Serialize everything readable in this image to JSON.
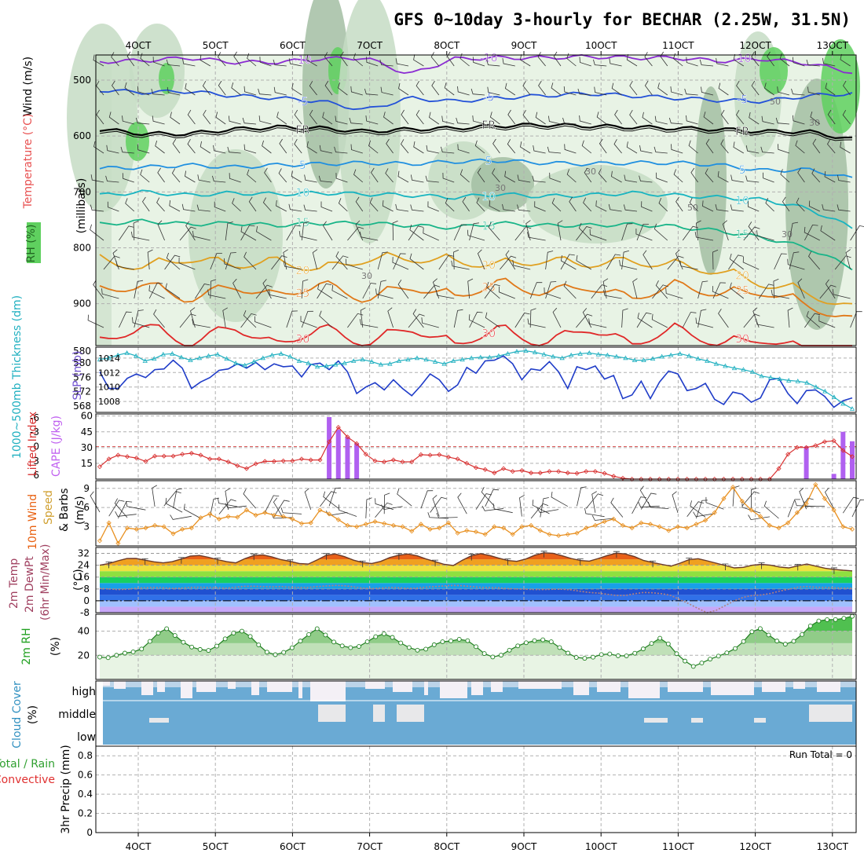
{
  "title": "GFS 0~10day 3-hourly for BECHAR (2.25W, 31.5N)",
  "colors": {
    "rh_light": "#e8f3e5",
    "rh_mid": "#c6dcc4",
    "rh_dark": "#a3bea3",
    "rh_green": "#5fd05f",
    "temp_m10": "#8a2bd2",
    "temp_m5": "#2250d8",
    "temp_fr": "#000000",
    "temp_5": "#1f8fe0",
    "temp_10": "#18b4c0",
    "temp_15": "#18b488",
    "temp_20": "#e0a020",
    "temp_25": "#e07818",
    "temp_30": "#e02828",
    "slp": "#1f3cc8",
    "thick": "#20b0c0",
    "li": "#d83030",
    "cape": "#b060f0",
    "wind10": "#e89020",
    "cloud": "#6aaad4",
    "grid": "#b0b0b0"
  },
  "chart_data": [
    {
      "type": "heatmap",
      "name": "upper-air",
      "ylabel": "(millibars)",
      "legend_labels": [
        "RH (%)",
        "Temperature (°C)",
        "Wind (m/s)"
      ],
      "yticks": [
        500,
        600,
        700,
        800,
        900
      ],
      "ylim": [
        975,
        455
      ],
      "xtick_labels": [
        "4OCT",
        "5OCT",
        "6OCT",
        "7OCT",
        "8OCT",
        "9OCT",
        "10OCT",
        "11OCT",
        "12OCT",
        "13OCT"
      ],
      "rh_labels": [
        "30",
        "30",
        "50",
        "30",
        "50",
        "30",
        "30"
      ],
      "isotherms": [
        {
          "label": "-10",
          "color_key": "temp_m10",
          "values": [
            467,
            465,
            460,
            468,
            468,
            462,
            460,
            490,
            462,
            460,
            460,
            458,
            460,
            460,
            466,
            462,
            470,
            486
          ]
        },
        {
          "label": "-5",
          "color_key": "temp_m5",
          "values": [
            518,
            522,
            520,
            528,
            532,
            538,
            554,
            532,
            538,
            532,
            528,
            524,
            528,
            532,
            536,
            538,
            528,
            524
          ]
        },
        {
          "label": "FR",
          "color_key": "temp_fr",
          "values": [
            588,
            596,
            596,
            588,
            584,
            586,
            592,
            588,
            586,
            582,
            580,
            582,
            584,
            586,
            588,
            592,
            592,
            606
          ]
        },
        {
          "label": "5",
          "color_key": "temp_5",
          "values": [
            658,
            656,
            652,
            656,
            652,
            650,
            648,
            650,
            646,
            644,
            648,
            650,
            648,
            648,
            652,
            662,
            660,
            676
          ]
        },
        {
          "label": "10",
          "color_key": "temp_10",
          "values": [
            706,
            700,
            706,
            702,
            704,
            702,
            704,
            706,
            710,
            704,
            708,
            706,
            702,
            706,
            710,
            714,
            730,
            764
          ]
        },
        {
          "label": "15",
          "color_key": "temp_15",
          "values": [
            758,
            752,
            758,
            756,
            760,
            756,
            756,
            760,
            764,
            756,
            760,
            760,
            758,
            762,
            770,
            782,
            800,
            836
          ]
        },
        {
          "label": "20",
          "color_key": "temp_20",
          "values": [
            812,
            822,
            806,
            818,
            812,
            826,
            808,
            806,
            812,
            818,
            810,
            816,
            812,
            818,
            830,
            852,
            868,
            898
          ]
        },
        {
          "label": "25",
          "color_key": "temp_25",
          "values": [
            868,
            852,
            880,
            856,
            874,
            852,
            880,
            856,
            876,
            850,
            868,
            856,
            878,
            854,
            870,
            866,
            890,
            920
          ]
        },
        {
          "label": "30",
          "color_key": "temp_30",
          "values": [
            960,
            925,
            960,
            928,
            962,
            930,
            960,
            930,
            962,
            932,
            960,
            930,
            960,
            932,
            960,
            950,
            975,
            975
          ]
        }
      ]
    },
    {
      "type": "line",
      "name": "slp-thickness",
      "ylabels": [
        "1000~500mb Thickness (dm)",
        "SLP (mb)"
      ],
      "yticks_left": [
        568,
        572,
        576,
        580
      ],
      "yticks_right": [
        1008,
        1010,
        1012,
        1014
      ],
      "ylim_right": [
        1006.5,
        1015.5
      ],
      "series": [
        {
          "key": "slp",
          "values": [
            1012.1,
            1009.8,
            1009.8,
            1011.2,
            1011.8,
            1011.3,
            1012.4,
            1012.5,
            1013.7,
            1012.6,
            1009.8,
            1010.7,
            1011.3,
            1012.3,
            1012.5,
            1013.2,
            1012.6,
            1013.4,
            1012.4,
            1013.2,
            1012.8,
            1012.9,
            1011.4,
            1013.1,
            1013.3,
            1012.4,
            1013.6,
            1012.1,
            1009.1,
            1010.0,
            1010.6,
            1009.6,
            1011.0,
            1009.8,
            1008.8,
            1010.2,
            1011.8,
            1011.0,
            1009.4,
            1010.3,
            1012.7,
            1011.9,
            1013.6,
            1013.7,
            1014.3,
            1013.2,
            1011.0,
            1012.5,
            1012.3,
            1013.5,
            1012.1,
            1009.8,
            1012.8,
            1012.4,
            1012.9,
            1011.1,
            1011.6,
            1008.4,
            1008.9,
            1010.8,
            1008.4,
            1010.7,
            1012.2,
            1011.8,
            1009.5,
            1009.8,
            1010.5,
            1008.3,
            1007.6,
            1009.3,
            1009.0,
            1007.9,
            1008.5,
            1011.0,
            1011.2,
            1009.1,
            1007.7,
            1009.5,
            1009.6,
            1008.7,
            1007.2,
            1008.1,
            1008.5
          ]
        },
        {
          "key": "thick",
          "values": [
            1013.8,
            1014.0,
            1014.4,
            1014.7,
            1014.3,
            1013.6,
            1013.9,
            1014.5,
            1014.6,
            1014.1,
            1013.7,
            1014.0,
            1014.3,
            1014.5,
            1013.9,
            1013.3,
            1013.0,
            1013.5,
            1014.0,
            1014.4,
            1014.6,
            1014.2,
            1013.6,
            1013.3,
            1012.8,
            1012.9,
            1013.1,
            1013.3,
            1013.6,
            1013.8,
            1013.5,
            1013.1,
            1013.2,
            1013.6,
            1013.8,
            1014.0,
            1013.8,
            1013.5,
            1013.2,
            1013.6,
            1013.8,
            1014.0,
            1014.1,
            1014.1,
            1014.3,
            1014.6,
            1014.9,
            1015.0,
            1014.8,
            1014.5,
            1014.2,
            1014.0,
            1014.4,
            1014.6,
            1014.7,
            1014.5,
            1014.4,
            1014.2,
            1014.0,
            1013.7,
            1013.7,
            1013.9,
            1014.2,
            1014.4,
            1014.6,
            1014.3,
            1013.9,
            1013.6,
            1013.2,
            1012.9,
            1012.6,
            1012.4,
            1012.1,
            1011.5,
            1011.3,
            1011.1,
            1010.9,
            1010.8,
            1010.6,
            1010.0,
            1009.4,
            1008.6,
            1007.7,
            1007.0
          ]
        }
      ]
    },
    {
      "type": "line",
      "name": "lifted-index-cape",
      "ylabels": [
        "Lifted Index",
        "CAPE (J/kg)"
      ],
      "yticks_left": [
        "-6",
        "-3",
        "0",
        "3",
        "6"
      ],
      "yticks_right": [
        15,
        30,
        45,
        60
      ],
      "li": [
        4.2,
        2.6,
        1.8,
        2.1,
        2.4,
        3.1,
        2.0,
        2.0,
        2.0,
        1.6,
        1.4,
        1.8,
        2.6,
        2.6,
        3.2,
        4.0,
        4.6,
        3.6,
        3.1,
        3.1,
        3.0,
        3.0,
        2.6,
        2.8,
        2.8,
        -1.0,
        -4.0,
        -2.0,
        -0.6,
        1.6,
        3.0,
        3.2,
        2.8,
        3.2,
        3.2,
        1.7,
        1.8,
        1.7,
        2.2,
        2.6,
        3.5,
        4.4,
        4.8,
        5.5,
        4.6,
        5.2,
        5.0,
        5.5,
        5.5,
        5.2,
        5.2,
        5.5,
        5.6,
        5.2,
        5.2,
        5.6,
        6.2,
        6.6,
        6.8,
        7.2,
        7.6,
        7.6,
        7.8,
        7.6,
        7.4,
        7.6,
        7.4,
        7.4,
        7.6,
        7.4,
        7.6,
        7.6,
        7.8,
        7.8,
        4.6,
        1.6,
        0.2,
        0.2,
        -0.2,
        -1.0,
        -1.2,
        0.8,
        2.1
      ],
      "cape": [
        {
          "i": 25,
          "v": 59
        },
        {
          "i": 26,
          "v": 47
        },
        {
          "i": 27,
          "v": 40
        },
        {
          "i": 28,
          "v": 34
        },
        {
          "i": 77,
          "v": 31
        },
        {
          "i": 80,
          "v": 5
        },
        {
          "i": 81,
          "v": 45
        },
        {
          "i": 82,
          "v": 36
        }
      ]
    },
    {
      "type": "line",
      "name": "10m-wind",
      "ylabel": "10m Wind Speed & Barbs (m/s)",
      "yticks": [
        3,
        6,
        9
      ],
      "values": [
        0.8,
        3.6,
        0.4,
        2.8,
        2.6,
        2.8,
        3.2,
        3.0,
        1.9,
        2.6,
        2.8,
        4.4,
        5.0,
        4.2,
        4.6,
        4.5,
        5.6,
        4.8,
        5.2,
        4.8,
        4.6,
        4.2,
        3.5,
        3.6,
        5.6,
        5.0,
        4.1,
        3.2,
        3.0,
        3.4,
        3.8,
        3.5,
        3.2,
        3.0,
        2.3,
        3.4,
        2.6,
        2.8,
        3.6,
        2.0,
        2.4,
        2.2,
        1.8,
        3.0,
        2.8,
        1.8,
        3.0,
        3.2,
        2.4,
        1.8,
        1.6,
        1.8,
        2.0,
        2.8,
        3.2,
        3.8,
        4.2,
        3.2,
        2.8,
        3.6,
        3.4,
        3.0,
        2.4,
        3.0,
        2.8,
        3.4,
        4.0,
        5.2,
        7.4,
        9.2,
        7.0,
        5.6,
        4.6,
        3.2,
        2.8,
        3.6,
        5.2,
        6.6,
        9.6,
        7.4,
        5.6,
        3.0,
        2.6
      ]
    },
    {
      "type": "area",
      "name": "2m-temp",
      "ylabel": "2m Temp 2m DewPt (6hr Min/Max) (°C)",
      "yticks": [
        "-8",
        "0",
        "8",
        "16",
        "24",
        "32"
      ],
      "ylim": [
        -8,
        36
      ],
      "temp": [
        24.0,
        25.2,
        27.0,
        28.5,
        28.6,
        27.4,
        26.3,
        25.6,
        26.4,
        28.2,
        30.2,
        30.6,
        29.4,
        27.8,
        26.4,
        25.6,
        28.4,
        30.6,
        31.0,
        29.6,
        27.8,
        26.6,
        25.2,
        24.8,
        27.6,
        30.8,
        31.6,
        29.8,
        27.4,
        25.8,
        25.2,
        26.6,
        29.2,
        30.8,
        31.6,
        30.4,
        28.2,
        26.4,
        24.6,
        23.8,
        27.4,
        30.4,
        31.8,
        30.6,
        28.8,
        27.2,
        26.6,
        28.2,
        30.8,
        32.4,
        32.0,
        30.4,
        28.6,
        27.2,
        26.8,
        28.6,
        30.6,
        32.2,
        31.6,
        29.8,
        27.2,
        25.8,
        24.6,
        23.4,
        25.4,
        27.8,
        28.4,
        27.0,
        25.4,
        23.8,
        22.2,
        22.6,
        24.0,
        24.6,
        24.0,
        22.8,
        22.2,
        23.6,
        24.8,
        23.4,
        22.0,
        21.2,
        20.6,
        20.2
      ],
      "dewpt": [
        8.4,
        8.0,
        7.6,
        7.8,
        8.6,
        8.8,
        9.0,
        8.8,
        8.4,
        8.6,
        9.0,
        9.2,
        9.0,
        8.8,
        8.6,
        9.2,
        9.8,
        9.8,
        9.6,
        9.4,
        9.6,
        9.2,
        9.0,
        9.0,
        9.6,
        10.0,
        10.4,
        10.2,
        9.4,
        8.6,
        8.2,
        8.6,
        9.0,
        8.8,
        8.4,
        8.6,
        9.2,
        9.6,
        10.0,
        10.4,
        10.2,
        9.6,
        9.0,
        9.0,
        8.8,
        8.2,
        8.0,
        7.8,
        7.6,
        7.6,
        7.8,
        7.8,
        7.4,
        6.4,
        5.6,
        5.2,
        4.4,
        3.6,
        3.6,
        4.8,
        5.6,
        5.4,
        4.8,
        3.6,
        0.8,
        -2.0,
        -5.2,
        -8.0,
        -6.4,
        -3.2,
        0.0,
        2.4,
        3.6,
        4.0,
        5.0,
        6.6,
        7.8,
        9.2,
        9.6,
        9.2,
        9.0,
        8.8,
        8.6,
        8.6
      ]
    },
    {
      "type": "area",
      "name": "2m-rh",
      "ylabel": "2m RH (%)",
      "yticks": [
        20,
        40
      ],
      "ylim": [
        0,
        54
      ],
      "values": [
        18.5,
        18.0,
        20.0,
        21.8,
        22.8,
        25.2,
        31.5,
        38.4,
        42.0,
        36.4,
        30.8,
        26.8,
        24.8,
        24.0,
        27.6,
        33.6,
        38.4,
        40.0,
        35.6,
        28.6,
        22.6,
        20.5,
        22.4,
        26.2,
        31.8,
        37.2,
        42.0,
        36.8,
        31.0,
        27.8,
        26.3,
        27.3,
        31.2,
        35.4,
        37.8,
        34.8,
        30.2,
        26.4,
        24.2,
        25.1,
        28.7,
        31.2,
        31.9,
        33.2,
        32.1,
        27.1,
        21.4,
        18.6,
        20.1,
        24.2,
        27.8,
        30.4,
        32.1,
        32.8,
        31.2,
        26.4,
        21.8,
        18.2,
        17.5,
        18.4,
        20.6,
        21.1,
        19.6,
        19.5,
        21.7,
        25.3,
        29.8,
        34.1,
        29.4,
        21.3,
        15.2,
        10.8,
        13.6,
        16.8,
        19.3,
        22.0,
        25.6,
        31.4,
        39.5,
        42.1,
        36.8,
        31.8,
        29.2,
        31.6,
        37.2,
        44.3,
        48.4,
        49.5,
        49.6,
        50.6,
        52.3
      ]
    },
    {
      "type": "heatmap",
      "name": "cloud-cover",
      "ylabel": "Cloud Cover (%)",
      "level_labels": [
        "high",
        "middle",
        "low"
      ]
    },
    {
      "type": "bar",
      "name": "3hr-precip",
      "ylabels": [
        "Total / Rain",
        "Convective",
        "3hr Precip (mm)"
      ],
      "yticks": [
        "0",
        "0.2",
        "0.4",
        "0.6",
        "0.8"
      ],
      "ylim": [
        0,
        0.9
      ],
      "run_total_label": "Run Total = 0",
      "values": []
    }
  ]
}
